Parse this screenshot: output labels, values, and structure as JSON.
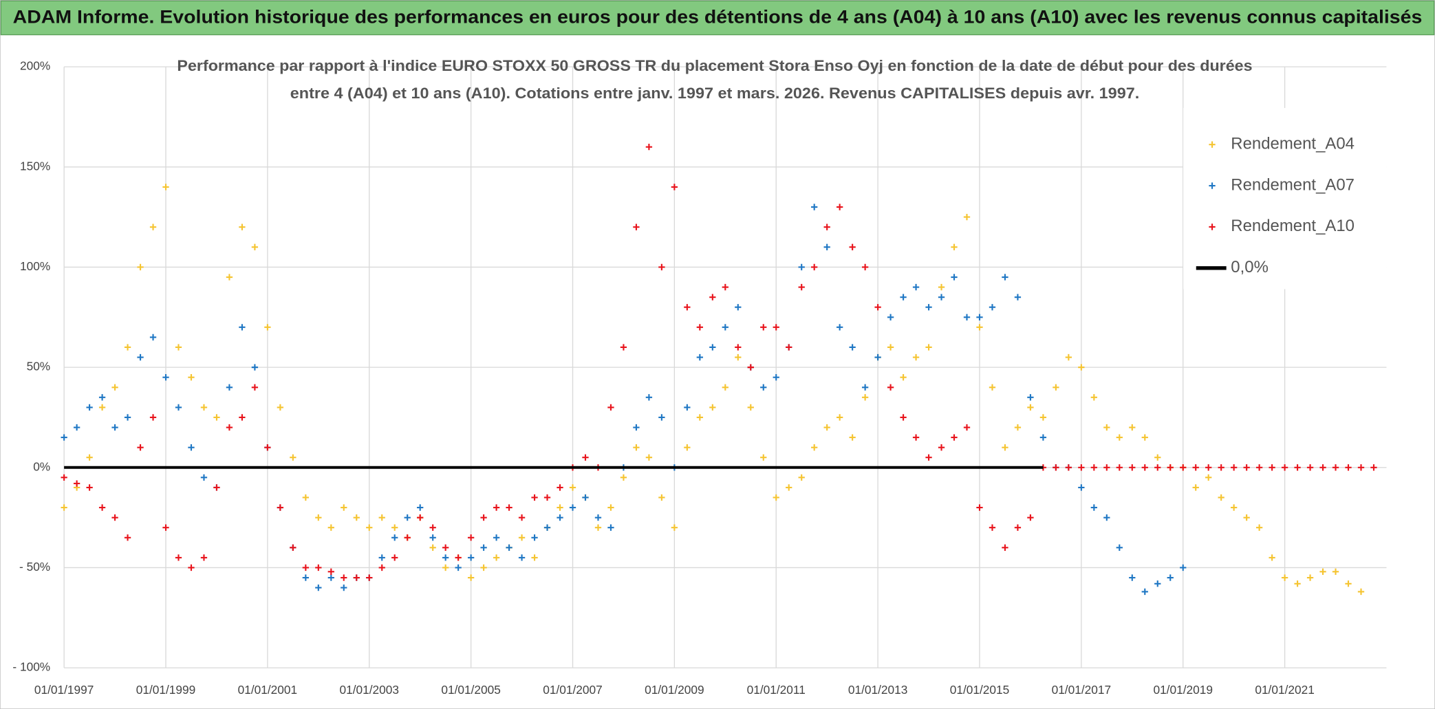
{
  "header": {
    "title": "ADAM Informe. Evolution historique des performances en euros pour des détentions de 4 ans (A04) à 10 ans (A10) avec les revenus connus capitalisés"
  },
  "chart_data": {
    "type": "scatter",
    "title": [
      "Performance par rapport à l'indice EURO STOXX 50 GROSS TR  du placement Stora Enso Oyj en fonction de la date de début pour des durées",
      "entre 4 (A04) et 10 ans (A10). Cotations entre janv. 1997 et mars. 2026. Revenus CAPITALISES depuis avr. 1997."
    ],
    "x": [
      "01/01/1997",
      "01/04/1997",
      "01/07/1997",
      "01/10/1997",
      "01/01/1998",
      "01/04/1998",
      "01/07/1998",
      "01/10/1998",
      "01/01/1999",
      "01/04/1999",
      "01/07/1999",
      "01/10/1999",
      "01/01/2000",
      "01/04/2000",
      "01/07/2000",
      "01/10/2000",
      "01/01/2001",
      "01/04/2001",
      "01/07/2001",
      "01/10/2001",
      "01/01/2002",
      "01/04/2002",
      "01/07/2002",
      "01/10/2002",
      "01/01/2003",
      "01/04/2003",
      "01/07/2003",
      "01/10/2003",
      "01/01/2004",
      "01/04/2004",
      "01/07/2004",
      "01/10/2004",
      "01/01/2005",
      "01/04/2005",
      "01/07/2005",
      "01/10/2005",
      "01/01/2006",
      "01/04/2006",
      "01/07/2006",
      "01/10/2006",
      "01/01/2007",
      "01/04/2007",
      "01/07/2007",
      "01/10/2007",
      "01/01/2008",
      "01/04/2008",
      "01/07/2008",
      "01/10/2008",
      "01/01/2009",
      "01/04/2009",
      "01/07/2009",
      "01/10/2009",
      "01/01/2010",
      "01/04/2010",
      "01/07/2010",
      "01/10/2010",
      "01/01/2011",
      "01/04/2011",
      "01/07/2011",
      "01/10/2011",
      "01/01/2012",
      "01/04/2012",
      "01/07/2012",
      "01/10/2012",
      "01/01/2013",
      "01/04/2013",
      "01/07/2013",
      "01/10/2013",
      "01/01/2014",
      "01/04/2014",
      "01/07/2014",
      "01/10/2014",
      "01/01/2015",
      "01/04/2015",
      "01/07/2015",
      "01/10/2015",
      "01/01/2016",
      "01/04/2016",
      "01/07/2016",
      "01/10/2016",
      "01/01/2017",
      "01/04/2017",
      "01/07/2017",
      "01/10/2017",
      "01/01/2018",
      "01/04/2018",
      "01/07/2018",
      "01/10/2018",
      "01/01/2019",
      "01/04/2019",
      "01/07/2019",
      "01/10/2019",
      "01/01/2020",
      "01/04/2020",
      "01/07/2020",
      "01/10/2020",
      "01/01/2021",
      "01/04/2021",
      "01/07/2021",
      "01/10/2021",
      "01/01/2022",
      "01/04/2022",
      "01/07/2022",
      "01/10/2022"
    ],
    "series": [
      {
        "name": "Rendement_A04",
        "color": "#f5c431",
        "mode": "markers",
        "values": [
          -20,
          -10,
          5,
          30,
          40,
          60,
          100,
          120,
          140,
          60,
          45,
          30,
          25,
          95,
          120,
          110,
          70,
          30,
          5,
          -15,
          -25,
          -30,
          -20,
          -25,
          -30,
          -25,
          -30,
          -35,
          -25,
          -40,
          -50,
          -45,
          -55,
          -50,
          -45,
          -40,
          -35,
          -45,
          -30,
          -20,
          -10,
          -15,
          -30,
          -20,
          -5,
          10,
          5,
          -15,
          -30,
          10,
          25,
          30,
          40,
          55,
          30,
          5,
          -15,
          -10,
          -5,
          10,
          20,
          25,
          15,
          35,
          55,
          60,
          45,
          55,
          60,
          90,
          110,
          125,
          70,
          40,
          10,
          20,
          30,
          25,
          40,
          55,
          50,
          35,
          20,
          15,
          20,
          15,
          5,
          0,
          0,
          -10,
          -5,
          -15,
          -20,
          -25,
          -30,
          -45,
          -55,
          -58,
          -55,
          -52,
          -52,
          -58,
          -62,
          null
        ]
      },
      {
        "name": "Rendement_A07",
        "color": "#1f77c4",
        "mode": "markers",
        "values": [
          15,
          20,
          30,
          35,
          20,
          25,
          55,
          65,
          45,
          30,
          10,
          -5,
          -10,
          40,
          70,
          50,
          10,
          -20,
          -40,
          -55,
          -60,
          -55,
          -60,
          -55,
          -55,
          -45,
          -35,
          -25,
          -20,
          -35,
          -45,
          -50,
          -45,
          -40,
          -35,
          -40,
          -45,
          -35,
          -30,
          -25,
          -20,
          -15,
          -25,
          -30,
          0,
          20,
          35,
          25,
          0,
          30,
          55,
          60,
          70,
          80,
          50,
          40,
          45,
          60,
          100,
          130,
          110,
          70,
          60,
          40,
          55,
          75,
          85,
          90,
          80,
          85,
          95,
          75,
          75,
          80,
          95,
          85,
          35,
          15,
          0,
          0,
          -10,
          -20,
          -25,
          -40,
          -55,
          -62,
          -58,
          -55,
          -50,
          null,
          null,
          null,
          null,
          null,
          null,
          null,
          null,
          null,
          null,
          null,
          null,
          null,
          null,
          null
        ]
      },
      {
        "name": "Rendement_A10",
        "color": "#e8141c",
        "mode": "markers",
        "values": [
          -5,
          -8,
          -10,
          -20,
          -25,
          -35,
          10,
          25,
          -30,
          -45,
          -50,
          -45,
          -10,
          20,
          25,
          40,
          10,
          -20,
          -40,
          -50,
          -50,
          -52,
          -55,
          -55,
          -55,
          -50,
          -45,
          -35,
          -25,
          -30,
          -40,
          -45,
          -35,
          -25,
          -20,
          -20,
          -25,
          -15,
          -15,
          -10,
          0,
          5,
          0,
          30,
          60,
          120,
          160,
          100,
          140,
          80,
          70,
          85,
          90,
          60,
          50,
          70,
          70,
          60,
          90,
          100,
          120,
          130,
          110,
          100,
          80,
          40,
          25,
          15,
          5,
          10,
          15,
          20,
          -20,
          -30,
          -40,
          -30,
          -25,
          0,
          0,
          0,
          0,
          0,
          0,
          0,
          0,
          0,
          0,
          0,
          0,
          0,
          0,
          0,
          0,
          0,
          0,
          0,
          0,
          0,
          0,
          0,
          0,
          0,
          0,
          0
        ]
      },
      {
        "name": "0,0%",
        "color": "#000000",
        "mode": "line",
        "x": [
          "01/01/1997",
          "01/04/2016"
        ],
        "values": [
          0,
          0
        ]
      }
    ],
    "xlim": [
      "01/01/1997",
      "01/01/2023"
    ],
    "xticks": [
      "01/01/1997",
      "01/01/1999",
      "01/01/2001",
      "01/01/2003",
      "01/01/2005",
      "01/01/2007",
      "01/01/2009",
      "01/01/2011",
      "01/01/2013",
      "01/01/2015",
      "01/01/2017",
      "01/01/2019",
      "01/01/2021"
    ],
    "ylim": [
      -100,
      200
    ],
    "yticks": [
      {
        "value": -100,
        "label": "- 100%"
      },
      {
        "value": -50,
        "label": "- 50%"
      },
      {
        "value": 0,
        "label": "0%"
      },
      {
        "value": 50,
        "label": "50%"
      },
      {
        "value": 100,
        "label": "100%"
      },
      {
        "value": 150,
        "label": "150%"
      },
      {
        "value": 200,
        "label": "200%"
      }
    ],
    "grid": true,
    "legend": "upper right"
  }
}
